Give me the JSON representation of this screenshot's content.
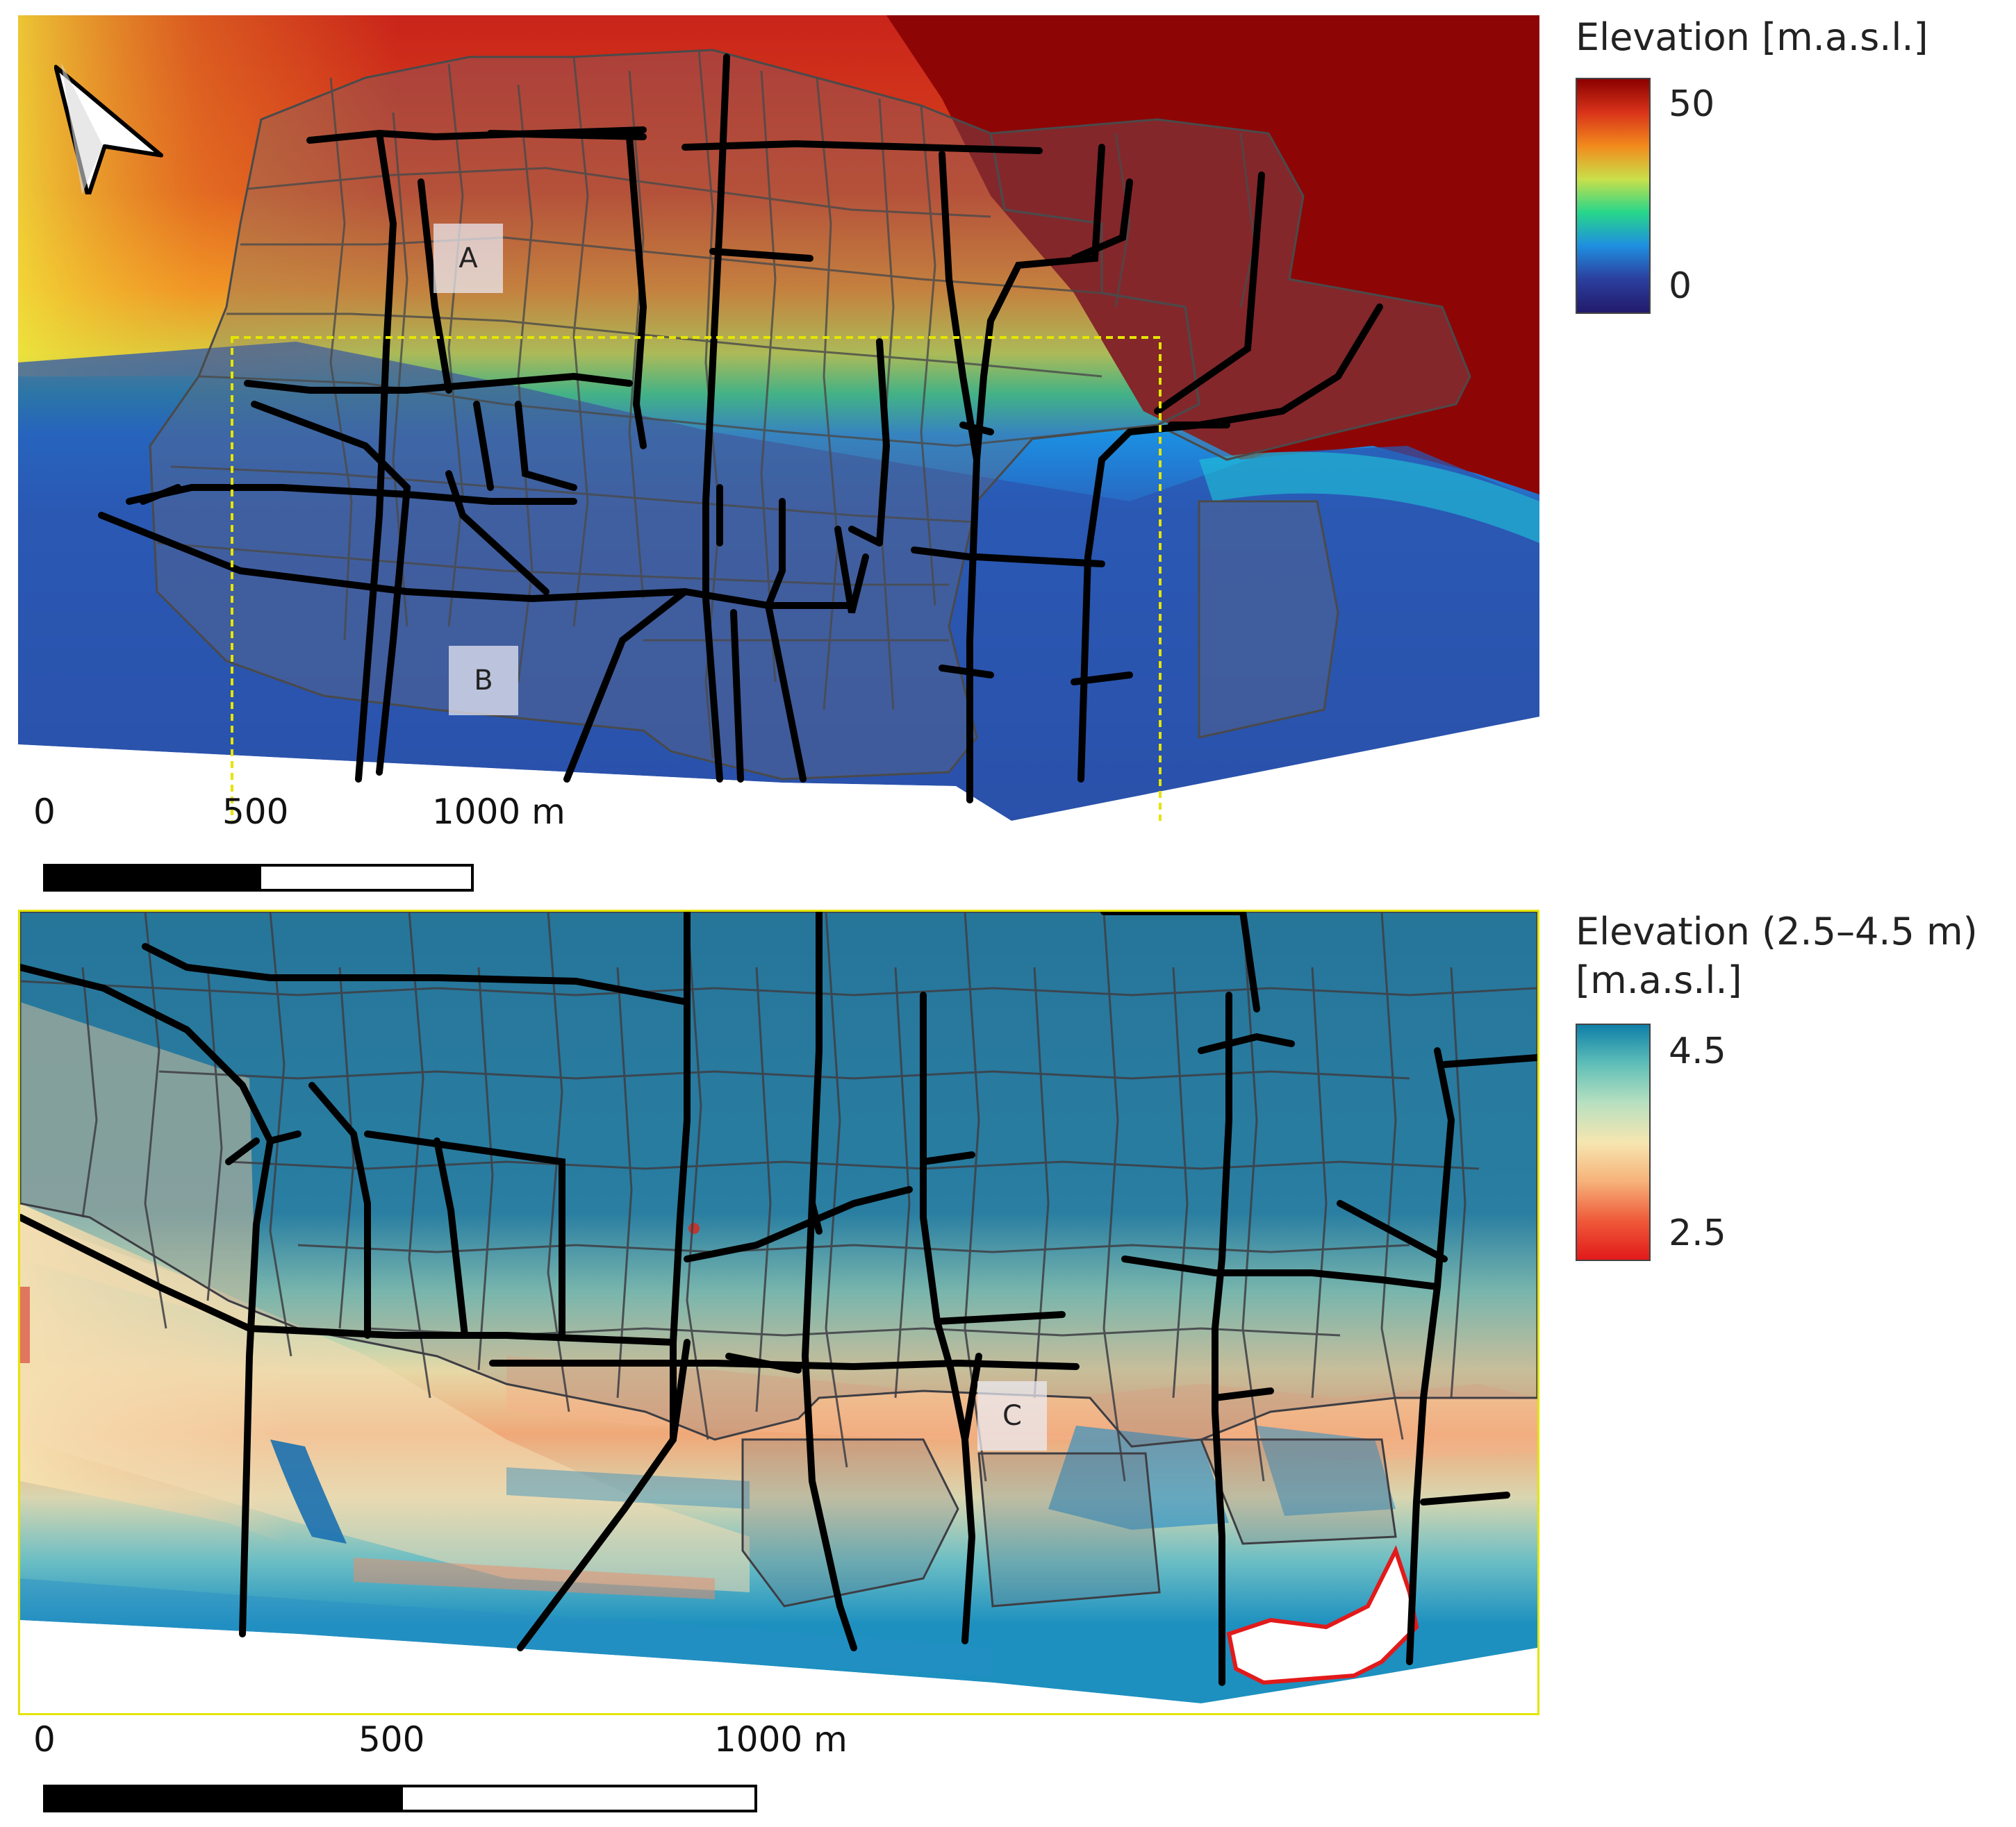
{
  "map_top": {
    "labels": [
      "A",
      "B"
    ],
    "scale_ticks": [
      "0",
      "500",
      "1000 m"
    ],
    "legend": {
      "title": "Elevation [m.a.s.l.]",
      "max_label": "50",
      "min_label": "0",
      "ramp_colors": [
        "#8b0000",
        "#d9331a",
        "#f28a1c",
        "#c9e04a",
        "#27d68a",
        "#1f8fe0",
        "#2b3f9e",
        "#221a6b"
      ]
    }
  },
  "map_bottom": {
    "labels": [
      "C"
    ],
    "scale_ticks": [
      "0",
      "500",
      "1000 m"
    ],
    "legend": {
      "title_line1": "Elevation (2.5–4.5 m)",
      "title_line2": "[m.a.s.l.]",
      "max_label": "4.5",
      "min_label": "2.5",
      "ramp_colors": [
        "#0f7fa8",
        "#5fbfb8",
        "#b8e0c0",
        "#f6e6b0",
        "#f6b27a",
        "#ef5a3a",
        "#e21a1a"
      ]
    }
  },
  "north_arrow": "north-arrow-icon",
  "colors": {
    "inset_frame": "#e4e400",
    "road": "#000000",
    "catchment": "#5a5a5a"
  }
}
